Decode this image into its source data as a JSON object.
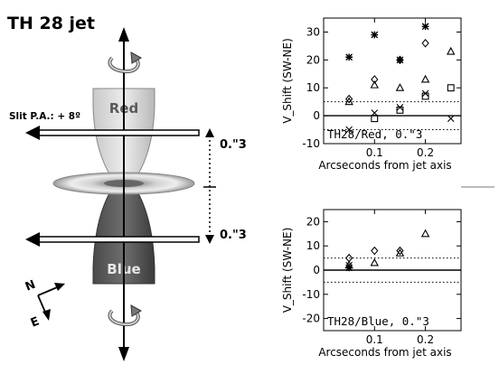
{
  "diagram": {
    "title": "TH 28 jet",
    "red_label": "Red",
    "blue_label": "Blue",
    "slit_label": "Slit P.A.: + 8º",
    "offset_top": "0.\"3",
    "offset_bottom": "0.\"3",
    "compass_n": "N",
    "compass_e": "E"
  },
  "chart_data": [
    {
      "type": "scatter",
      "title": "TH28/Red, 0.\"3",
      "xlabel": "Arcseconds from jet axis",
      "ylabel": "V_Shift (SW-NE)",
      "xlim": [
        0,
        0.27
      ],
      "ylim": [
        -10,
        35
      ],
      "xticks": [
        0.1,
        0.2
      ],
      "xtick_labels": [
        "0.1",
        "0.2"
      ],
      "yticks": [
        -10,
        0,
        10,
        20,
        30
      ],
      "ytick_labels": [
        "-10",
        "0",
        "10",
        "20",
        "30"
      ],
      "reference_lines": [
        {
          "y": 5,
          "style": "dotted"
        },
        {
          "y": -5,
          "style": "dotted"
        },
        {
          "y": 0,
          "style": "solid"
        }
      ],
      "series": [
        {
          "marker": "asterisk",
          "x": [
            0.05,
            0.1,
            0.15,
            0.2
          ],
          "y": [
            21,
            29,
            20,
            32
          ]
        },
        {
          "marker": "diamond",
          "x": [
            0.05,
            0.1,
            0.15,
            0.2
          ],
          "y": [
            6,
            13,
            20,
            26
          ]
        },
        {
          "marker": "triangle",
          "x": [
            0.05,
            0.1,
            0.15,
            0.2,
            0.25
          ],
          "y": [
            5,
            11,
            10,
            13,
            23
          ]
        },
        {
          "marker": "square",
          "x": [
            0.1,
            0.15,
            0.2,
            0.25
          ],
          "y": [
            -1,
            2,
            7,
            10
          ]
        },
        {
          "marker": "x",
          "x": [
            0.05,
            0.1,
            0.15,
            0.2,
            0.25
          ],
          "y": [
            -5,
            1,
            3,
            8,
            -1
          ]
        }
      ]
    },
    {
      "type": "scatter",
      "title": "TH28/Blue, 0.\"3",
      "xlabel": "Arcseconds from jet axis",
      "ylabel": "V_Shift (SW-NE)",
      "xlim": [
        0,
        0.27
      ],
      "ylim": [
        -25,
        25
      ],
      "xticks": [
        0.1,
        0.2
      ],
      "xtick_labels": [
        "0.1",
        "0.2"
      ],
      "yticks": [
        -20,
        -10,
        0,
        10,
        20
      ],
      "ytick_labels": [
        "-20",
        "-10",
        "0",
        "10",
        "20"
      ],
      "reference_lines": [
        {
          "y": 5,
          "style": "dotted"
        },
        {
          "y": -5,
          "style": "dotted"
        },
        {
          "y": 0,
          "style": "solid"
        }
      ],
      "series": [
        {
          "marker": "diamond",
          "x": [
            0.05,
            0.1,
            0.15
          ],
          "y": [
            5,
            8,
            8
          ]
        },
        {
          "marker": "triangle",
          "x": [
            0.05,
            0.1,
            0.15,
            0.2
          ],
          "y": [
            2,
            3,
            7,
            15
          ]
        },
        {
          "marker": "asterisk",
          "x": [
            0.05
          ],
          "y": [
            1
          ]
        },
        {
          "marker": "x",
          "x": [
            0.05
          ],
          "y": [
            2
          ]
        }
      ]
    }
  ]
}
